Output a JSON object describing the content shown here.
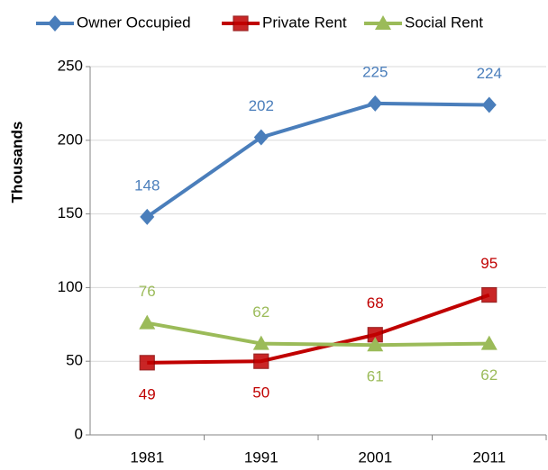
{
  "chart_data": {
    "type": "line",
    "y_label": "Thousands",
    "categories": [
      "1981",
      "1991",
      "2001",
      "2011"
    ],
    "series": [
      {
        "name": "Owner Occupied",
        "color": "#4a7ebb",
        "marker": "diamond",
        "values": [
          148,
          202,
          225,
          224
        ]
      },
      {
        "name": "Private Rent",
        "color": "#c00000",
        "marker": "square",
        "values": [
          49,
          50,
          68,
          95
        ]
      },
      {
        "name": "Social Rent",
        "color": "#9bbb59",
        "marker": "triangle",
        "values": [
          76,
          62,
          61,
          62
        ]
      }
    ],
    "ylim": [
      0,
      250
    ],
    "yticks": [
      0,
      50,
      100,
      150,
      200,
      250
    ],
    "grid": true,
    "legend": "top"
  }
}
